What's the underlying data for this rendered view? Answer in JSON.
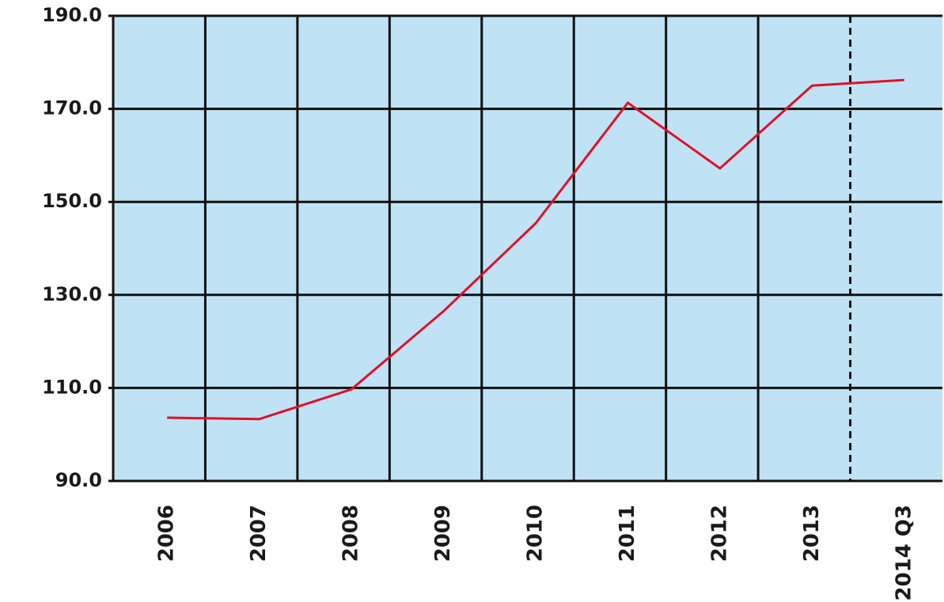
{
  "chart_data": {
    "type": "line",
    "categories": [
      "2006",
      "2007",
      "2008",
      "2009",
      "2010",
      "2011",
      "2012",
      "2013",
      "2014 Q3"
    ],
    "series": [
      {
        "color": "#e0102a",
        "values": [
          103.6,
          103.3,
          109.7,
          126.5,
          145.4,
          171.3,
          157.2,
          175.0,
          176.2
        ]
      }
    ],
    "ylim": [
      90,
      190
    ],
    "yticks": [
      {
        "value": 90,
        "label": "90.0"
      },
      {
        "value": 110,
        "label": "110.0"
      },
      {
        "value": 130,
        "label": "130.0"
      },
      {
        "value": 150,
        "label": "150.0"
      },
      {
        "value": 170,
        "label": "170.0"
      },
      {
        "value": 190,
        "label": "190.0"
      }
    ],
    "grid": true
  }
}
